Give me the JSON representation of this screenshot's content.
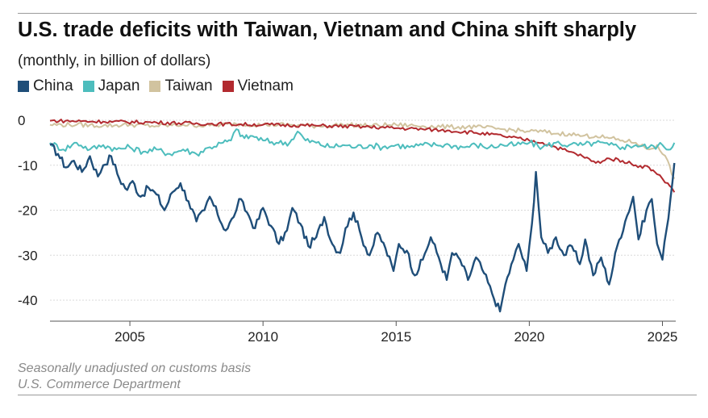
{
  "chart_data": {
    "type": "line",
    "title": "U.S. trade deficits with Taiwan, Vietnam and China shift sharply",
    "subtitle": "(monthly, in billion of dollars)",
    "xlabel": "",
    "ylabel": "",
    "xlim": [
      2002.0,
      2025.5
    ],
    "ylim": [
      -45,
      1
    ],
    "yticks": [
      0,
      -10,
      -20,
      -30,
      -40
    ],
    "ytick_labels": [
      "0",
      "-10",
      "-20",
      "-30",
      "-40"
    ],
    "xticks": [
      2005,
      2010,
      2015,
      2020,
      2025
    ],
    "xtick_labels": [
      "2005",
      "2010",
      "2015",
      "2020",
      "2025"
    ],
    "grid": true,
    "legend_position": "top-left",
    "series": [
      {
        "name": "China",
        "color": "#1f4e79",
        "points": [
          [
            2002.0,
            -5.5
          ],
          [
            2002.3,
            -7.5
          ],
          [
            2002.6,
            -10.5
          ],
          [
            2002.9,
            -9.0
          ],
          [
            2003.2,
            -11.5
          ],
          [
            2003.5,
            -8.0
          ],
          [
            2003.8,
            -12.5
          ],
          [
            2004.0,
            -10.0
          ],
          [
            2004.3,
            -8.0
          ],
          [
            2004.6,
            -13.0
          ],
          [
            2004.9,
            -15.5
          ],
          [
            2005.1,
            -13.5
          ],
          [
            2005.4,
            -17.0
          ],
          [
            2005.7,
            -15.0
          ],
          [
            2006.0,
            -16.5
          ],
          [
            2006.3,
            -20.0
          ],
          [
            2006.6,
            -16.0
          ],
          [
            2006.9,
            -14.0
          ],
          [
            2007.2,
            -18.0
          ],
          [
            2007.5,
            -22.5
          ],
          [
            2007.8,
            -20.0
          ],
          [
            2008.0,
            -17.0
          ],
          [
            2008.3,
            -21.0
          ],
          [
            2008.6,
            -24.5
          ],
          [
            2008.9,
            -21.5
          ],
          [
            2009.1,
            -17.5
          ],
          [
            2009.4,
            -20.5
          ],
          [
            2009.7,
            -24.0
          ],
          [
            2010.0,
            -19.5
          ],
          [
            2010.3,
            -23.5
          ],
          [
            2010.6,
            -27.5
          ],
          [
            2010.9,
            -24.5
          ],
          [
            2011.1,
            -19.5
          ],
          [
            2011.4,
            -23.0
          ],
          [
            2011.7,
            -28.0
          ],
          [
            2012.0,
            -26.0
          ],
          [
            2012.3,
            -21.5
          ],
          [
            2012.6,
            -27.5
          ],
          [
            2012.9,
            -29.5
          ],
          [
            2013.1,
            -24.0
          ],
          [
            2013.4,
            -20.5
          ],
          [
            2013.7,
            -26.0
          ],
          [
            2014.0,
            -30.0
          ],
          [
            2014.3,
            -25.0
          ],
          [
            2014.6,
            -28.5
          ],
          [
            2014.9,
            -33.5
          ],
          [
            2015.1,
            -27.5
          ],
          [
            2015.4,
            -29.0
          ],
          [
            2015.7,
            -34.5
          ],
          [
            2016.0,
            -31.0
          ],
          [
            2016.3,
            -26.0
          ],
          [
            2016.6,
            -30.5
          ],
          [
            2016.9,
            -35.5
          ],
          [
            2017.1,
            -29.5
          ],
          [
            2017.4,
            -31.0
          ],
          [
            2017.7,
            -35.5
          ],
          [
            2018.0,
            -30.5
          ],
          [
            2018.3,
            -34.0
          ],
          [
            2018.6,
            -38.5
          ],
          [
            2018.9,
            -42.5
          ],
          [
            2019.1,
            -36.5
          ],
          [
            2019.4,
            -31.0
          ],
          [
            2019.6,
            -27.5
          ],
          [
            2019.9,
            -33.5
          ],
          [
            2020.1,
            -23.0
          ],
          [
            2020.25,
            -11.5
          ],
          [
            2020.45,
            -26.0
          ],
          [
            2020.7,
            -29.5
          ],
          [
            2021.0,
            -26.0
          ],
          [
            2021.3,
            -30.0
          ],
          [
            2021.6,
            -28.0
          ],
          [
            2021.9,
            -32.0
          ],
          [
            2022.1,
            -26.5
          ],
          [
            2022.4,
            -34.5
          ],
          [
            2022.7,
            -30.5
          ],
          [
            2023.0,
            -36.5
          ],
          [
            2023.3,
            -28.0
          ],
          [
            2023.6,
            -22.5
          ],
          [
            2023.9,
            -17.0
          ],
          [
            2024.1,
            -26.5
          ],
          [
            2024.4,
            -20.0
          ],
          [
            2024.6,
            -17.5
          ],
          [
            2024.8,
            -27.5
          ],
          [
            2025.0,
            -31.0
          ],
          [
            2025.15,
            -24.5
          ],
          [
            2025.3,
            -17.5
          ],
          [
            2025.45,
            -9.5
          ]
        ]
      },
      {
        "name": "Japan",
        "color": "#4dbdbd",
        "points": [
          [
            2002.0,
            -5.0
          ],
          [
            2002.5,
            -6.5
          ],
          [
            2003.0,
            -5.0
          ],
          [
            2003.5,
            -6.5
          ],
          [
            2004.0,
            -5.5
          ],
          [
            2004.5,
            -6.5
          ],
          [
            2005.0,
            -6.0
          ],
          [
            2005.5,
            -7.0
          ],
          [
            2006.0,
            -6.5
          ],
          [
            2006.5,
            -7.5
          ],
          [
            2007.0,
            -6.5
          ],
          [
            2007.5,
            -7.5
          ],
          [
            2008.0,
            -6.0
          ],
          [
            2008.5,
            -5.0
          ],
          [
            2008.8,
            -4.5
          ],
          [
            2009.0,
            -2.0
          ],
          [
            2009.3,
            -4.0
          ],
          [
            2009.6,
            -3.5
          ],
          [
            2010.0,
            -4.5
          ],
          [
            2010.5,
            -5.0
          ],
          [
            2011.0,
            -5.0
          ],
          [
            2011.3,
            -2.5
          ],
          [
            2011.6,
            -4.5
          ],
          [
            2012.0,
            -5.0
          ],
          [
            2012.5,
            -6.0
          ],
          [
            2013.0,
            -5.5
          ],
          [
            2013.5,
            -6.0
          ],
          [
            2014.0,
            -5.5
          ],
          [
            2014.5,
            -6.0
          ],
          [
            2015.0,
            -5.5
          ],
          [
            2015.5,
            -6.0
          ],
          [
            2016.0,
            -5.5
          ],
          [
            2016.5,
            -5.5
          ],
          [
            2017.0,
            -5.5
          ],
          [
            2017.5,
            -6.0
          ],
          [
            2018.0,
            -5.5
          ],
          [
            2018.5,
            -6.0
          ],
          [
            2019.0,
            -5.5
          ],
          [
            2019.5,
            -5.5
          ],
          [
            2020.0,
            -5.0
          ],
          [
            2020.5,
            -6.0
          ],
          [
            2021.0,
            -5.0
          ],
          [
            2021.5,
            -5.5
          ],
          [
            2022.0,
            -5.5
          ],
          [
            2022.5,
            -5.0
          ],
          [
            2023.0,
            -5.5
          ],
          [
            2023.5,
            -6.0
          ],
          [
            2024.0,
            -5.5
          ],
          [
            2024.5,
            -6.0
          ],
          [
            2025.0,
            -5.5
          ],
          [
            2025.3,
            -6.5
          ],
          [
            2025.45,
            -5.0
          ]
        ]
      },
      {
        "name": "Taiwan",
        "color": "#d1c39f",
        "points": [
          [
            2002.0,
            -1.0
          ],
          [
            2003.0,
            -1.0
          ],
          [
            2004.0,
            -1.2
          ],
          [
            2005.0,
            -1.0
          ],
          [
            2006.0,
            -1.3
          ],
          [
            2007.0,
            -1.0
          ],
          [
            2008.0,
            -1.2
          ],
          [
            2009.0,
            -0.8
          ],
          [
            2010.0,
            -1.0
          ],
          [
            2011.0,
            -1.0
          ],
          [
            2012.0,
            -1.3
          ],
          [
            2013.0,
            -1.0
          ],
          [
            2014.0,
            -1.2
          ],
          [
            2015.0,
            -1.0
          ],
          [
            2016.0,
            -1.3
          ],
          [
            2017.0,
            -1.5
          ],
          [
            2018.0,
            -1.5
          ],
          [
            2019.0,
            -2.0
          ],
          [
            2020.0,
            -2.5
          ],
          [
            2020.5,
            -2.5
          ],
          [
            2021.0,
            -3.0
          ],
          [
            2021.5,
            -3.0
          ],
          [
            2022.0,
            -3.5
          ],
          [
            2022.5,
            -3.5
          ],
          [
            2023.0,
            -4.0
          ],
          [
            2023.5,
            -4.5
          ],
          [
            2024.0,
            -5.0
          ],
          [
            2024.5,
            -6.5
          ],
          [
            2024.8,
            -5.5
          ],
          [
            2025.0,
            -7.5
          ],
          [
            2025.2,
            -9.0
          ],
          [
            2025.35,
            -12.0
          ],
          [
            2025.45,
            -13.0
          ]
        ]
      },
      {
        "name": "Vietnam",
        "color": "#b22a2f",
        "points": [
          [
            2002.0,
            -0.1
          ],
          [
            2004.0,
            -0.3
          ],
          [
            2006.0,
            -0.5
          ],
          [
            2008.0,
            -0.8
          ],
          [
            2010.0,
            -1.0
          ],
          [
            2012.0,
            -1.2
          ],
          [
            2014.0,
            -1.5
          ],
          [
            2016.0,
            -2.0
          ],
          [
            2017.0,
            -2.3
          ],
          [
            2018.0,
            -2.8
          ],
          [
            2019.0,
            -3.5
          ],
          [
            2020.0,
            -4.5
          ],
          [
            2020.5,
            -5.0
          ],
          [
            2021.0,
            -6.0
          ],
          [
            2021.5,
            -7.0
          ],
          [
            2022.0,
            -8.0
          ],
          [
            2022.5,
            -9.5
          ],
          [
            2023.0,
            -8.5
          ],
          [
            2023.5,
            -9.0
          ],
          [
            2024.0,
            -10.0
          ],
          [
            2024.5,
            -10.5
          ],
          [
            2024.8,
            -12.0
          ],
          [
            2025.0,
            -13.0
          ],
          [
            2025.2,
            -14.0
          ],
          [
            2025.35,
            -15.0
          ],
          [
            2025.45,
            -16.0
          ]
        ]
      }
    ]
  },
  "notes": {
    "line1": "Seasonally unadjusted on customs basis",
    "line2": "U.S. Commerce Department"
  }
}
